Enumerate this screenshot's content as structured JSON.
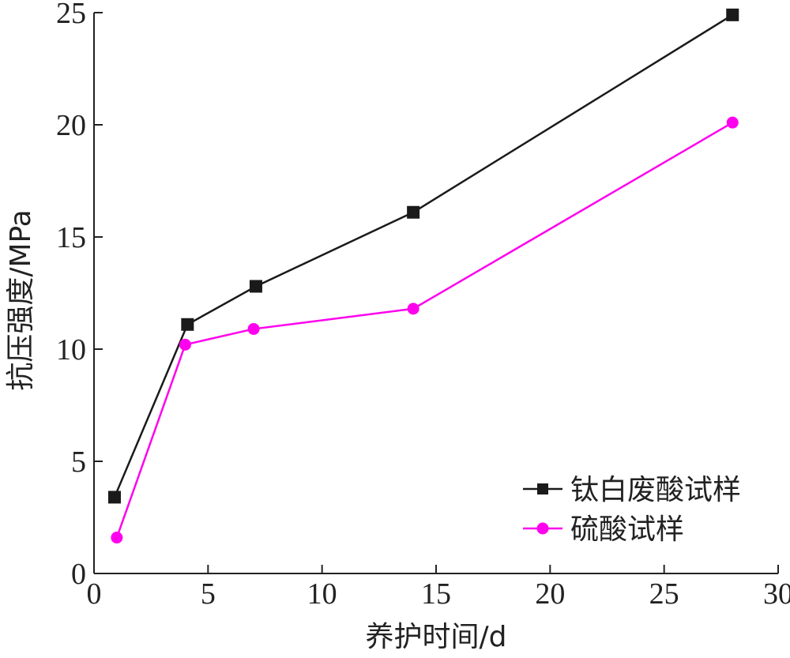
{
  "chart_data": {
    "type": "line",
    "xlabel": "养护时间/d",
    "ylabel": "抗压强度/MPa",
    "xlim": [
      0,
      30
    ],
    "ylim": [
      0,
      25
    ],
    "xticks": [
      "0",
      "5",
      "10",
      "15",
      "20",
      "25",
      "30"
    ],
    "yticks": [
      "0",
      "5",
      "10",
      "15",
      "20",
      "25"
    ],
    "grid": false,
    "legend_position": "bottom-right",
    "series": [
      {
        "name": "钛白废酸试样",
        "color": "#1a1a1a",
        "marker": "square",
        "x": [
          0.9,
          4.1,
          7.1,
          14.0,
          28.0
        ],
        "y": [
          3.4,
          11.1,
          12.8,
          16.1,
          24.9
        ]
      },
      {
        "name": "硫酸试样",
        "color": "#ff00ee",
        "marker": "circle",
        "x": [
          1.0,
          4.0,
          7.0,
          14.0,
          28.0
        ],
        "y": [
          1.6,
          10.2,
          10.9,
          11.8,
          20.1
        ]
      }
    ]
  }
}
